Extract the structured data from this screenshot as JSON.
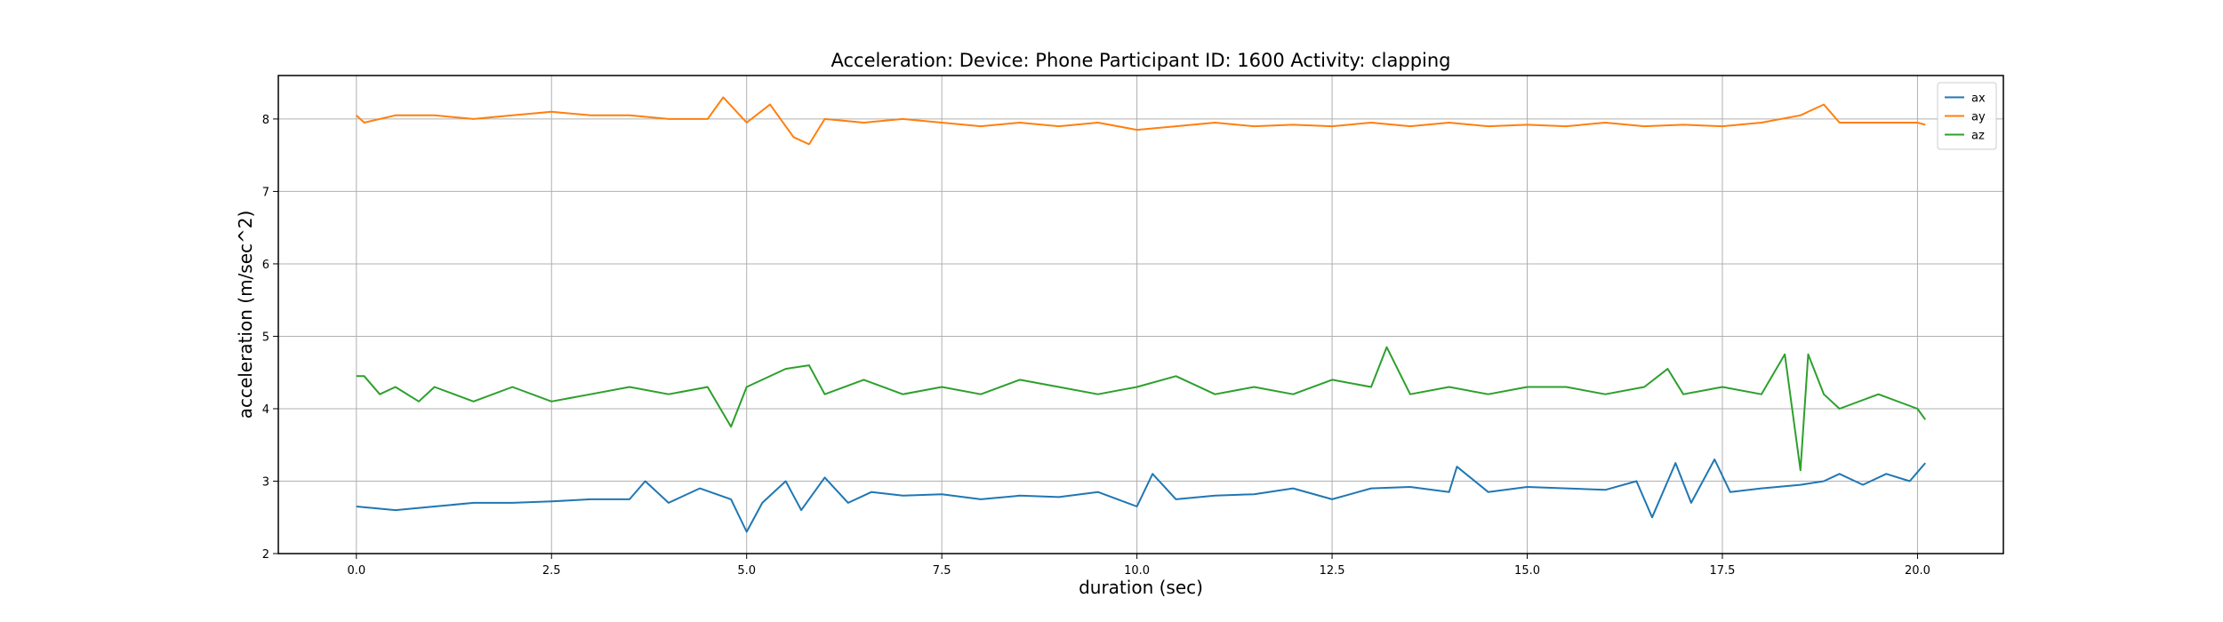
{
  "chart_data": {
    "type": "line",
    "title": "Acceleration:   Device: Phone     Participant ID: 1600      Activity:  clapping",
    "xlabel": "duration  (sec)",
    "ylabel": "acceleration  (m/sec^2)",
    "xlim": [
      -1.0,
      21.1
    ],
    "ylim": [
      2,
      8.6
    ],
    "xticks": [
      0.0,
      2.5,
      5.0,
      7.5,
      10.0,
      12.5,
      15.0,
      17.5,
      20.0
    ],
    "xtick_labels": [
      "0.0",
      "2.5",
      "5.0",
      "7.5",
      "10.0",
      "12.5",
      "15.0",
      "17.5",
      "20.0"
    ],
    "yticks": [
      2,
      3,
      4,
      5,
      6,
      7,
      8
    ],
    "ytick_labels": [
      "2",
      "3",
      "4",
      "5",
      "6",
      "7",
      "8"
    ],
    "grid": true,
    "legend_position": "top-right",
    "series": [
      {
        "name": "ax",
        "color": "#1f77b4",
        "x": [
          0.0,
          0.5,
          1.0,
          1.5,
          2.0,
          2.5,
          3.0,
          3.5,
          3.7,
          4.0,
          4.4,
          4.8,
          5.0,
          5.2,
          5.5,
          5.7,
          6.0,
          6.3,
          6.6,
          7.0,
          7.5,
          8.0,
          8.5,
          9.0,
          9.5,
          10.0,
          10.2,
          10.5,
          11.0,
          11.5,
          12.0,
          12.5,
          13.0,
          13.5,
          14.0,
          14.1,
          14.5,
          15.0,
          15.5,
          16.0,
          16.4,
          16.6,
          16.9,
          17.1,
          17.4,
          17.6,
          18.0,
          18.5,
          18.8,
          19.0,
          19.3,
          19.6,
          19.9,
          20.1
        ],
        "y": [
          2.65,
          2.6,
          2.65,
          2.7,
          2.7,
          2.72,
          2.75,
          2.75,
          3.0,
          2.7,
          2.9,
          2.75,
          2.3,
          2.7,
          3.0,
          2.6,
          3.05,
          2.7,
          2.85,
          2.8,
          2.82,
          2.75,
          2.8,
          2.78,
          2.85,
          2.65,
          3.1,
          2.75,
          2.8,
          2.82,
          2.9,
          2.75,
          2.9,
          2.92,
          2.85,
          3.2,
          2.85,
          2.92,
          2.9,
          2.88,
          3.0,
          2.5,
          3.25,
          2.7,
          3.3,
          2.85,
          2.9,
          2.95,
          3.0,
          3.1,
          2.95,
          3.1,
          3.0,
          3.25
        ]
      },
      {
        "name": "ay",
        "color": "#ff7f0e",
        "x": [
          0.0,
          0.1,
          0.5,
          1.0,
          1.5,
          2.0,
          2.5,
          3.0,
          3.5,
          4.0,
          4.5,
          4.7,
          5.0,
          5.3,
          5.6,
          5.8,
          6.0,
          6.5,
          7.0,
          7.5,
          8.0,
          8.5,
          9.0,
          9.5,
          10.0,
          10.5,
          11.0,
          11.5,
          12.0,
          12.5,
          13.0,
          13.5,
          14.0,
          14.5,
          15.0,
          15.5,
          16.0,
          16.5,
          17.0,
          17.5,
          18.0,
          18.5,
          18.8,
          19.0,
          19.5,
          20.0,
          20.1
        ],
        "y": [
          8.05,
          7.95,
          8.05,
          8.05,
          8.0,
          8.05,
          8.1,
          8.05,
          8.05,
          8.0,
          8.0,
          8.3,
          7.95,
          8.2,
          7.75,
          7.65,
          8.0,
          7.95,
          8.0,
          7.95,
          7.9,
          7.95,
          7.9,
          7.95,
          7.85,
          7.9,
          7.95,
          7.9,
          7.92,
          7.9,
          7.95,
          7.9,
          7.95,
          7.9,
          7.92,
          7.9,
          7.95,
          7.9,
          7.92,
          7.9,
          7.95,
          8.05,
          8.2,
          7.95,
          7.95,
          7.95,
          7.92
        ]
      },
      {
        "name": "az",
        "color": "#2ca02c",
        "x": [
          0.0,
          0.1,
          0.3,
          0.5,
          0.8,
          1.0,
          1.5,
          2.0,
          2.5,
          3.0,
          3.5,
          4.0,
          4.5,
          4.8,
          5.0,
          5.5,
          5.8,
          6.0,
          6.5,
          7.0,
          7.5,
          8.0,
          8.5,
          9.0,
          9.5,
          10.0,
          10.5,
          11.0,
          11.5,
          12.0,
          12.5,
          13.0,
          13.2,
          13.5,
          14.0,
          14.5,
          15.0,
          15.5,
          16.0,
          16.5,
          16.8,
          17.0,
          17.5,
          18.0,
          18.3,
          18.5,
          18.6,
          18.8,
          19.0,
          19.5,
          20.0,
          20.1
        ],
        "y": [
          4.45,
          4.45,
          4.2,
          4.3,
          4.1,
          4.3,
          4.1,
          4.3,
          4.1,
          4.2,
          4.3,
          4.2,
          4.3,
          3.75,
          4.3,
          4.55,
          4.6,
          4.2,
          4.4,
          4.2,
          4.3,
          4.2,
          4.4,
          4.3,
          4.2,
          4.3,
          4.45,
          4.2,
          4.3,
          4.2,
          4.4,
          4.3,
          4.85,
          4.2,
          4.3,
          4.2,
          4.3,
          4.3,
          4.2,
          4.3,
          4.55,
          4.2,
          4.3,
          4.2,
          4.75,
          3.15,
          4.75,
          4.2,
          4.0,
          4.2,
          4.0,
          3.85
        ]
      }
    ]
  }
}
